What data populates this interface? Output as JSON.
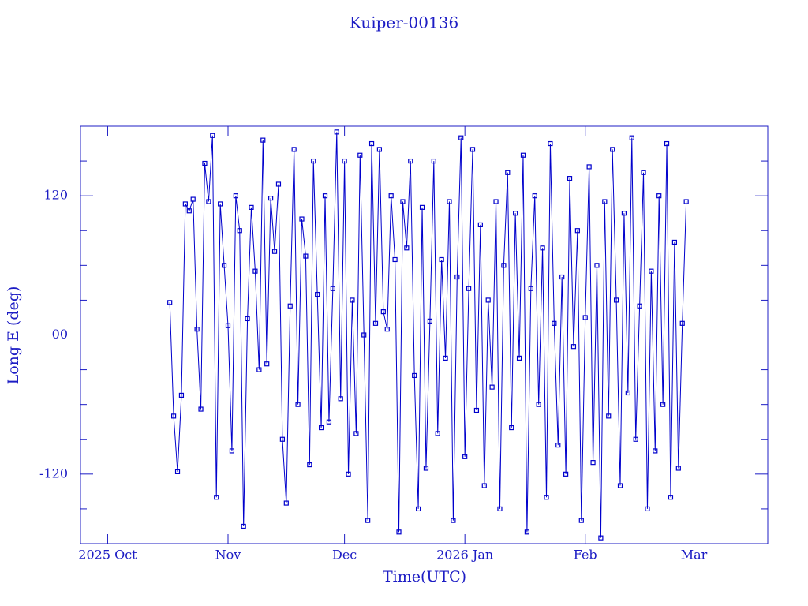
{
  "chart_data": {
    "type": "line",
    "title": "Kuiper-00136",
    "x_label": "Time(UTC)",
    "y_label": "Long E (deg)",
    "xlim": [
      "2025-09-24",
      "2026-03-20"
    ],
    "xticks": [
      {
        "value": "2025-10-01",
        "label": "2025 Oct"
      },
      {
        "value": "2025-11-01",
        "label": "Nov"
      },
      {
        "value": "2025-12-01",
        "label": "Dec"
      },
      {
        "value": "2026-01-01",
        "label": "2026 Jan"
      },
      {
        "value": "2026-02-01",
        "label": "Feb"
      },
      {
        "value": "2026-03-01",
        "label": "Mar"
      }
    ],
    "ylim": [
      -180,
      180
    ],
    "yticks": [
      -120,
      {
        "value": 0,
        "label": "00"
      },
      120
    ],
    "yminor_ticks": [
      -150,
      -90,
      -60,
      -30,
      30,
      60,
      90,
      150
    ],
    "x": [
      "2025-10-17",
      "2025-10-18",
      "2025-10-19",
      "2025-10-20",
      "2025-10-21",
      "2025-10-22",
      "2025-10-23",
      "2025-10-24",
      "2025-10-25",
      "2025-10-26",
      "2025-10-27",
      "2025-10-28",
      "2025-10-29",
      "2025-10-30",
      "2025-10-31",
      "2025-11-01",
      "2025-11-02",
      "2025-11-03",
      "2025-11-04",
      "2025-11-05",
      "2025-11-06",
      "2025-11-07",
      "2025-11-08",
      "2025-11-09",
      "2025-11-10",
      "2025-11-11",
      "2025-11-12",
      "2025-11-13",
      "2025-11-14",
      "2025-11-15",
      "2025-11-16",
      "2025-11-17",
      "2025-11-18",
      "2025-11-19",
      "2025-11-20",
      "2025-11-21",
      "2025-11-22",
      "2025-11-23",
      "2025-11-24",
      "2025-11-25",
      "2025-11-26",
      "2025-11-27",
      "2025-11-28",
      "2025-11-29",
      "2025-11-30",
      "2025-12-01",
      "2025-12-02",
      "2025-12-03",
      "2025-12-04",
      "2025-12-05",
      "2025-12-06",
      "2025-12-07",
      "2025-12-08",
      "2025-12-09",
      "2025-12-10",
      "2025-12-11",
      "2025-12-12",
      "2025-12-13",
      "2025-12-14",
      "2025-12-15",
      "2025-12-16",
      "2025-12-17",
      "2025-12-18",
      "2025-12-19",
      "2025-12-20",
      "2025-12-21",
      "2025-12-22",
      "2025-12-23",
      "2025-12-24",
      "2025-12-25",
      "2025-12-26",
      "2025-12-27",
      "2025-12-28",
      "2025-12-29",
      "2025-12-30",
      "2025-12-31",
      "2026-01-01",
      "2026-01-02",
      "2026-01-03",
      "2026-01-04",
      "2026-01-05",
      "2026-01-06",
      "2026-01-07",
      "2026-01-08",
      "2026-01-09",
      "2026-01-10",
      "2026-01-11",
      "2026-01-12",
      "2026-01-13",
      "2026-01-14",
      "2026-01-15",
      "2026-01-16",
      "2026-01-17",
      "2026-01-18",
      "2026-01-19",
      "2026-01-20",
      "2026-01-21",
      "2026-01-22",
      "2026-01-23",
      "2026-01-24",
      "2026-01-25",
      "2026-01-26",
      "2026-01-27",
      "2026-01-28",
      "2026-01-29",
      "2026-01-30",
      "2026-01-31",
      "2026-02-01",
      "2026-02-02",
      "2026-02-03",
      "2026-02-04",
      "2026-02-05",
      "2026-02-06",
      "2026-02-07",
      "2026-02-08",
      "2026-02-09",
      "2026-02-10",
      "2026-02-11",
      "2026-02-12",
      "2026-02-13",
      "2026-02-14",
      "2026-02-15",
      "2026-02-16",
      "2026-02-17",
      "2026-02-18",
      "2026-02-19",
      "2026-02-20",
      "2026-02-21",
      "2026-02-22",
      "2026-02-23",
      "2026-02-24",
      "2026-02-25",
      "2026-02-26",
      "2026-02-27"
    ],
    "series": [
      {
        "color": "#0000cc",
        "values": [
          28,
          -70,
          -118,
          -52,
          113,
          107,
          117,
          5,
          -64,
          148,
          115,
          172,
          -140,
          113,
          60,
          8,
          -100,
          120,
          90,
          -165,
          14,
          110,
          55,
          -30,
          168,
          -25,
          118,
          72,
          130,
          -90,
          -145,
          25,
          160,
          -60,
          100,
          68,
          -112,
          150,
          35,
          -80,
          120,
          -75,
          40,
          175,
          -55,
          150,
          -120,
          30,
          -85,
          155,
          0,
          -160,
          165,
          10,
          160,
          20,
          5,
          120,
          65,
          -170,
          115,
          75,
          150,
          -35,
          -150,
          110,
          -115,
          12,
          150,
          -85,
          65,
          -20,
          115,
          -160,
          50,
          170,
          -105,
          40,
          160,
          -65,
          95,
          -130,
          30,
          -45,
          115,
          -150,
          60,
          140,
          -80,
          105,
          -20,
          155,
          -170,
          40,
          120,
          -60,
          75,
          -140,
          165,
          10,
          -95,
          50,
          -120,
          135,
          -10,
          90,
          -160,
          15,
          145,
          -110,
          60,
          -175,
          115,
          -70,
          160,
          30,
          -130,
          105,
          -50,
          170,
          -90,
          25,
          140,
          -150,
          55,
          -100,
          120,
          -60,
          165,
          -140,
          80,
          -115,
          10,
          115
        ]
      }
    ]
  }
}
